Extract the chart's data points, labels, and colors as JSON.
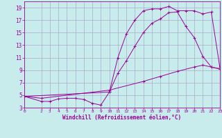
{
  "background_color": "#c8ecec",
  "grid_color": "#aaaacc",
  "line_color": "#990099",
  "xlabel": "Windchill (Refroidissement éolien,°C)",
  "xlim": [
    0,
    23
  ],
  "ylim": [
    3,
    20
  ],
  "xticks": [
    0,
    2,
    3,
    4,
    5,
    6,
    7,
    8,
    9,
    10,
    11,
    12,
    13,
    14,
    15,
    16,
    17,
    18,
    19,
    20,
    21,
    22,
    23
  ],
  "yticks": [
    3,
    5,
    7,
    9,
    11,
    13,
    15,
    17,
    19
  ],
  "curve1_x": [
    0,
    2,
    3,
    4,
    5,
    6,
    7,
    8,
    9,
    10,
    11,
    12,
    13,
    14,
    15,
    16,
    17,
    18,
    19,
    20,
    21,
    22,
    23
  ],
  "curve1_y": [
    4.8,
    4.0,
    4.0,
    4.4,
    4.5,
    4.5,
    4.3,
    3.7,
    3.4,
    5.5,
    11.0,
    14.8,
    17.0,
    18.5,
    18.8,
    18.8,
    19.2,
    18.5,
    18.5,
    18.5,
    18.0,
    18.3,
    9.5
  ],
  "curve2_x": [
    0,
    10,
    11,
    12,
    13,
    14,
    15,
    16,
    17,
    18,
    19,
    20,
    21,
    22,
    23
  ],
  "curve2_y": [
    4.8,
    5.5,
    8.5,
    10.5,
    12.8,
    15.0,
    16.5,
    17.2,
    18.2,
    18.3,
    16.0,
    14.2,
    11.2,
    9.5,
    9.2
  ],
  "curve3_x": [
    0,
    2,
    10,
    14,
    16,
    18,
    20,
    21,
    22,
    23
  ],
  "curve3_y": [
    4.8,
    4.5,
    5.8,
    7.2,
    8.0,
    8.8,
    9.5,
    9.8,
    9.5,
    9.2
  ]
}
